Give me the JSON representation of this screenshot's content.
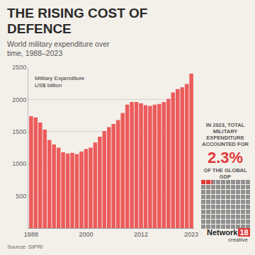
{
  "chart_data": {
    "type": "bar",
    "title": "THE RISING COST OF DEFENCE",
    "subtitle": "World military expenditure over time, 1988–2023",
    "ylabel": [
      "Military Expenditure",
      "US$ billion"
    ],
    "categories": [
      "1988",
      null,
      null,
      null,
      null,
      null,
      null,
      null,
      null,
      null,
      null,
      null,
      "2000",
      null,
      null,
      null,
      null,
      null,
      null,
      null,
      null,
      null,
      null,
      null,
      "2012",
      null,
      null,
      null,
      null,
      null,
      null,
      null,
      null,
      null,
      null,
      "2023"
    ],
    "values": [
      1740,
      1720,
      1640,
      1530,
      1370,
      1300,
      1250,
      1180,
      1160,
      1170,
      1150,
      1190,
      1230,
      1250,
      1330,
      1420,
      1510,
      1570,
      1620,
      1680,
      1790,
      1920,
      1960,
      1960,
      1940,
      1910,
      1900,
      1920,
      1930,
      1960,
      2010,
      2110,
      2160,
      2190,
      2240,
      2400
    ],
    "color": "#ec5b5b",
    "ylim": [
      0,
      2500
    ],
    "yticks": [
      500,
      1000,
      1500,
      2000,
      2500
    ],
    "grid": true,
    "source": "Source: SIPRI"
  },
  "callout": {
    "text_before": "IN 2023, TOTAL MILITARY EXPENDITURE ACCOUNTED FOR",
    "value": 2.3,
    "value_label": "2.3%",
    "text_after": "OF THE GLOBAL GDP",
    "color": "#e03a3a"
  },
  "logo": {
    "name": "Network",
    "number": "18",
    "tag": "creative"
  }
}
